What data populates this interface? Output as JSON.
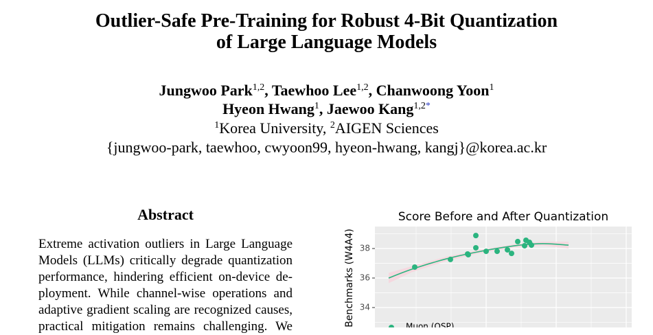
{
  "header": {
    "title_lines": [
      "Outlier-Safe Pre-Training for Robust 4-Bit Quantization",
      "of Large Language Models"
    ],
    "author_lines": [
      [
        {
          "text": "Jungwoo Park",
          "sup": "1,2"
        },
        {
          "text": ", Taewhoo Lee",
          "sup": "1,2"
        },
        {
          "text": ", Chanwoong Yoon",
          "sup": "1"
        }
      ],
      [
        {
          "text": "Hyeon Hwang",
          "sup": "1"
        },
        {
          "text": ", Jaewoo Kang",
          "sup": "1,2",
          "mark": "*"
        }
      ]
    ],
    "affiliations": [
      {
        "sup": "1",
        "text": "Korea University, "
      },
      {
        "sup": "2",
        "text": "AIGEN Sciences"
      }
    ],
    "emails": "{jungwoo-park, taewhoo, cwyoon99, hyeon-hwang, kangj}@korea.ac.kr"
  },
  "abstract": {
    "heading": "Abstract",
    "lines": [
      "Extreme activation outliers in Large Language",
      "Models (LLMs) critically degrade quantization",
      "performance, hindering efficient on-device de-",
      "ployment. While channel-wise operations and",
      "adaptive gradient scaling are recognized causes,",
      "practical mitigation remains challenging. We"
    ]
  },
  "chart_data": {
    "type": "scatter",
    "title": "Score Before and After Quantization",
    "y_label": "Benchmarks (W4A4)",
    "xlim": [
      0,
      37.4
    ],
    "ylim": [
      32.65,
      39.49
    ],
    "yticks": [
      34,
      36,
      38
    ],
    "grid": true,
    "series": [
      {
        "name": "Muon (OSP)",
        "color": "#2bb47f",
        "x": [
          5.8,
          11.0,
          13.5,
          13.6,
          14.7,
          14.7,
          16.2,
          17.8,
          19.3,
          19.9,
          20.8,
          21.8,
          22.0,
          22.5,
          22.8
        ],
        "values": [
          36.74,
          37.26,
          37.63,
          37.58,
          38.88,
          38.05,
          37.81,
          37.81,
          37.91,
          37.67,
          38.47,
          38.19,
          38.56,
          38.42,
          38.23
        ]
      }
    ],
    "trend": {
      "color": "#2bb47f",
      "band_color": "#f7d3dc",
      "x": [
        2.0,
        5.4,
        10.4,
        15.4,
        20.4,
        24.4,
        28.2
      ],
      "values": [
        36.0,
        36.6,
        37.3,
        37.81,
        38.19,
        38.33,
        38.23
      ],
      "lower": [
        35.65,
        36.4,
        37.15,
        37.7,
        38.08,
        38.2,
        38.0
      ],
      "upper": [
        36.35,
        36.8,
        37.45,
        37.92,
        38.3,
        38.46,
        38.46
      ]
    }
  }
}
